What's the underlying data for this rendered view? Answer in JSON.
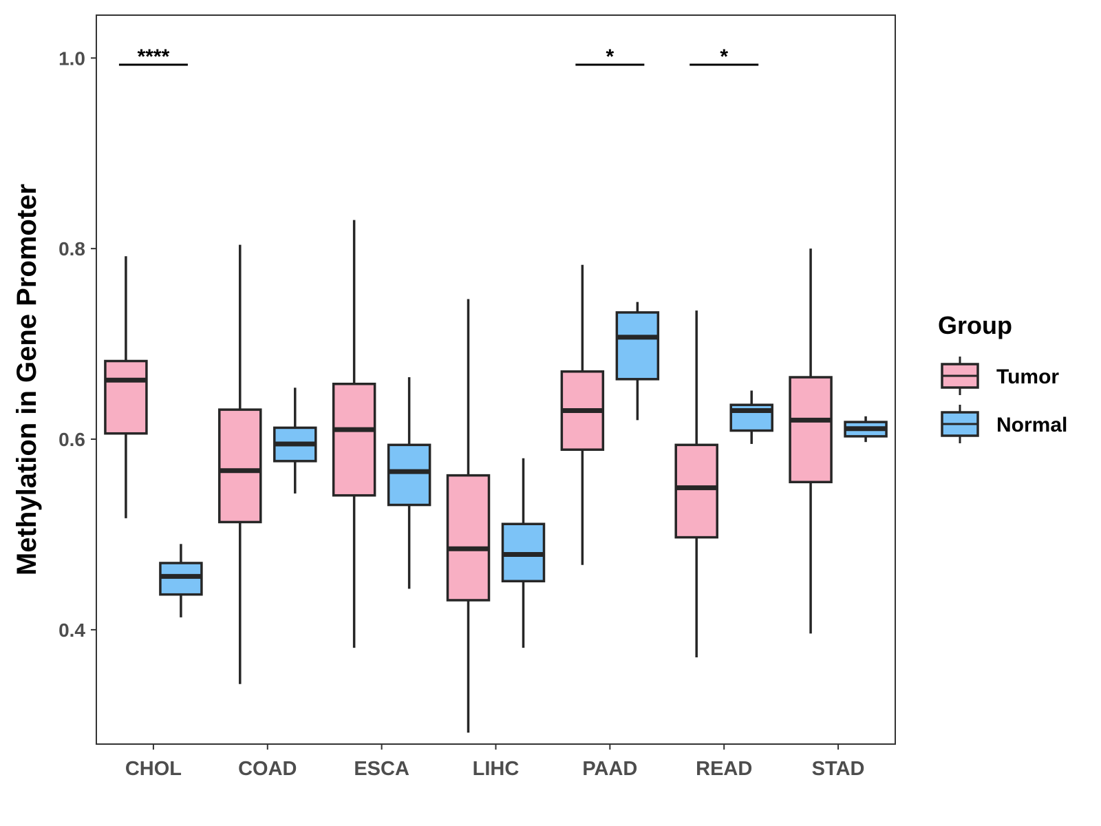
{
  "chart_data": {
    "type": "boxplot",
    "ylabel": "Methylation in Gene Promoter",
    "xlabel": "",
    "ylim": [
      0.28,
      1.045
    ],
    "yticks": [
      0.4,
      0.6,
      0.8,
      1.0
    ],
    "ytick_labels": [
      "0.4",
      "0.6",
      "0.8",
      "1.0"
    ],
    "grid": false,
    "categories": [
      "CHOL",
      "COAD",
      "ESCA",
      "LIHC",
      "PAAD",
      "READ",
      "STAD"
    ],
    "legend": {
      "title": "Group",
      "position": "right",
      "entries": [
        {
          "name": "Tumor",
          "color": "#F8AFC3"
        },
        {
          "name": "Normal",
          "color": "#7CC3F7"
        }
      ]
    },
    "series": [
      {
        "name": "Tumor",
        "color": "#F8AFC3",
        "boxes": [
          {
            "category": "CHOL",
            "min": 0.517,
            "q1": 0.606,
            "median": 0.662,
            "q3": 0.682,
            "max": 0.792
          },
          {
            "category": "COAD",
            "min": 0.343,
            "q1": 0.513,
            "median": 0.567,
            "q3": 0.631,
            "max": 0.804
          },
          {
            "category": "ESCA",
            "min": 0.381,
            "q1": 0.541,
            "median": 0.61,
            "q3": 0.658,
            "max": 0.83
          },
          {
            "category": "LIHC",
            "min": 0.292,
            "q1": 0.431,
            "median": 0.485,
            "q3": 0.562,
            "max": 0.747
          },
          {
            "category": "PAAD",
            "min": 0.468,
            "q1": 0.589,
            "median": 0.63,
            "q3": 0.671,
            "max": 0.783
          },
          {
            "category": "READ",
            "min": 0.371,
            "q1": 0.497,
            "median": 0.549,
            "q3": 0.594,
            "max": 0.735
          },
          {
            "category": "STAD",
            "min": 0.396,
            "q1": 0.555,
            "median": 0.62,
            "q3": 0.665,
            "max": 0.8
          }
        ]
      },
      {
        "name": "Normal",
        "color": "#7CC3F7",
        "boxes": [
          {
            "category": "CHOL",
            "min": 0.413,
            "q1": 0.437,
            "median": 0.456,
            "q3": 0.47,
            "max": 0.49
          },
          {
            "category": "COAD",
            "min": 0.543,
            "q1": 0.577,
            "median": 0.595,
            "q3": 0.612,
            "max": 0.654
          },
          {
            "category": "ESCA",
            "min": 0.443,
            "q1": 0.531,
            "median": 0.566,
            "q3": 0.594,
            "max": 0.665
          },
          {
            "category": "LIHC",
            "min": 0.381,
            "q1": 0.451,
            "median": 0.479,
            "q3": 0.511,
            "max": 0.58
          },
          {
            "category": "PAAD",
            "min": 0.62,
            "q1": 0.663,
            "median": 0.707,
            "q3": 0.733,
            "max": 0.744
          },
          {
            "category": "READ",
            "min": 0.595,
            "q1": 0.609,
            "median": 0.63,
            "q3": 0.636,
            "max": 0.651
          },
          {
            "category": "STAD",
            "min": 0.597,
            "q1": 0.603,
            "median": 0.611,
            "q3": 0.618,
            "max": 0.624
          }
        ]
      }
    ],
    "annotations": [
      {
        "category": "CHOL",
        "label": "****",
        "y": 0.993
      },
      {
        "category": "PAAD",
        "label": "*",
        "y": 0.993
      },
      {
        "category": "READ",
        "label": "*",
        "y": 0.993
      }
    ]
  }
}
